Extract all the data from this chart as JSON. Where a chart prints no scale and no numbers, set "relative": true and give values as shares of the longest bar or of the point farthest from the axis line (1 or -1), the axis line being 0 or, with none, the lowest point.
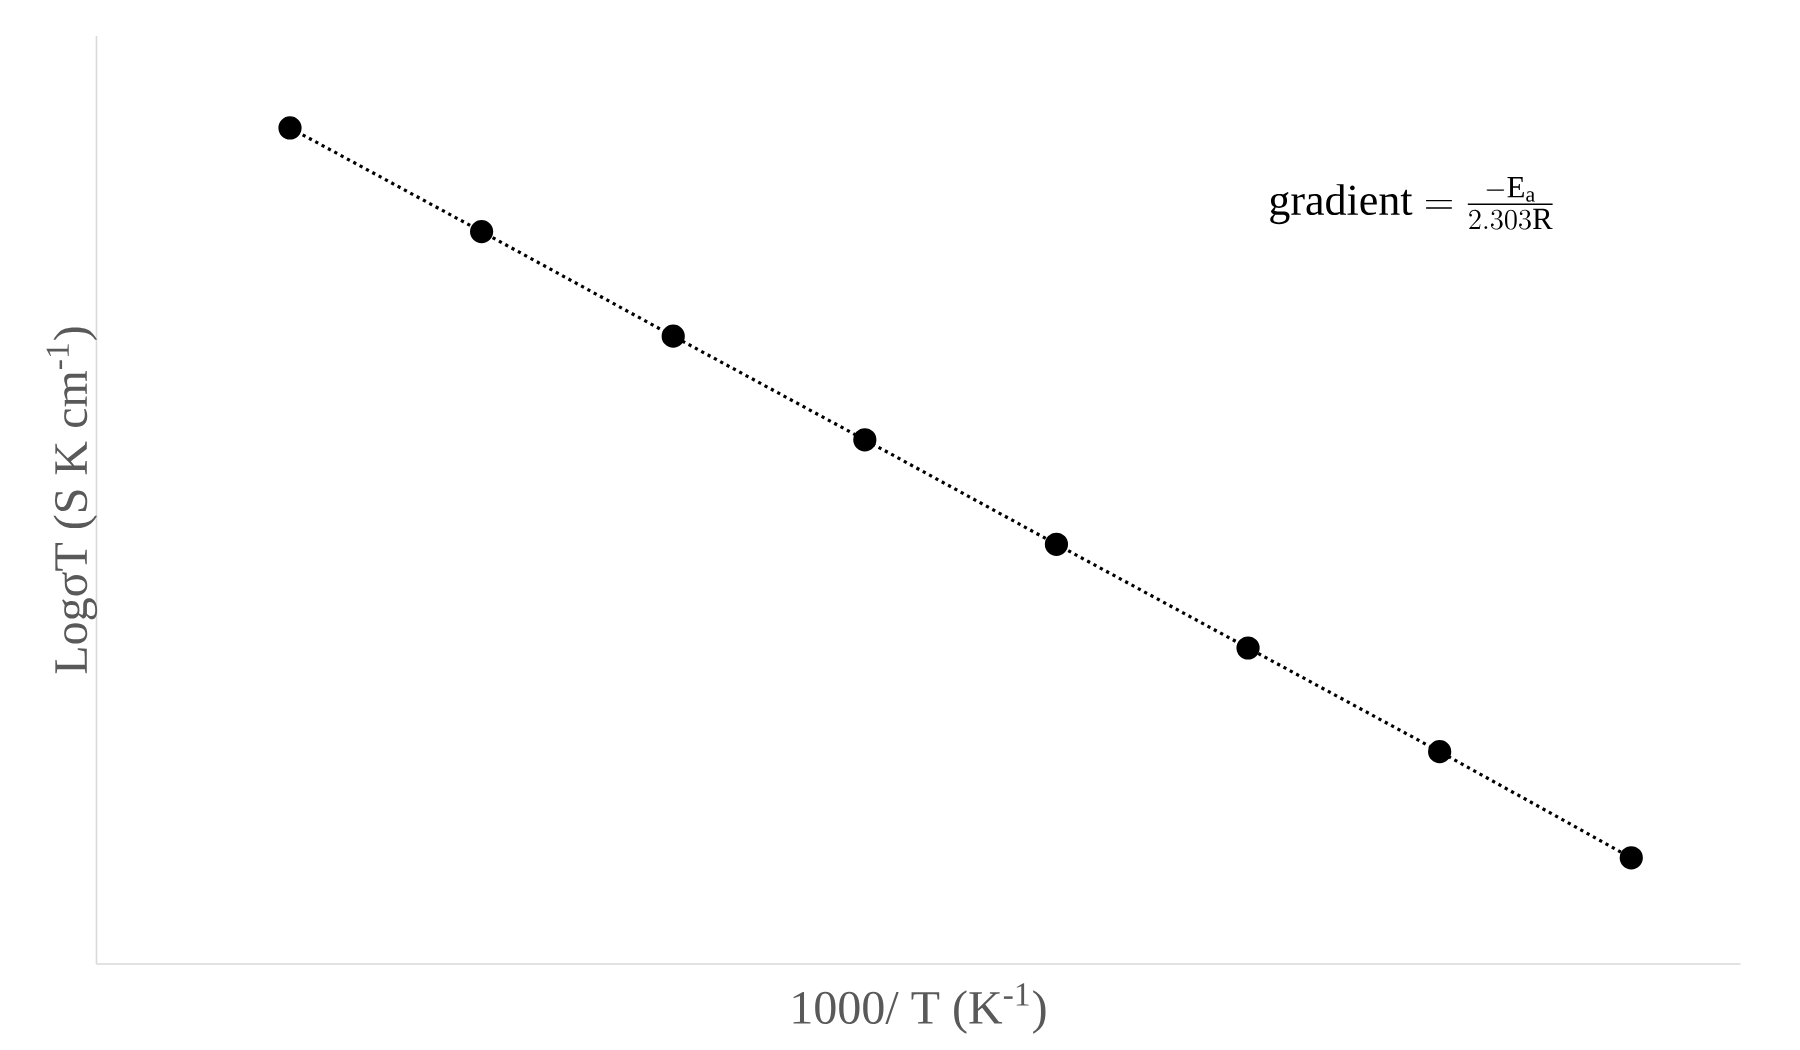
{
  "chart_data": {
    "type": "line",
    "relative": true,
    "xlabel": "1000/ T (K$^{-1}$)",
    "ylabel": "LogσT (S K cm$^{-1}$)",
    "categories": [
      null,
      null,
      null,
      null,
      null,
      null,
      null,
      null
    ],
    "values": [
      1,
      0.876,
      0.751,
      0.627,
      0.502,
      0.378,
      0.254,
      0.127
    ],
    "color": "#000000",
    "marker": "circle",
    "line_style": "dotted",
    "tick_labels": false,
    "annotations": [
      "\\mathrm{gradient} = \\frac{-\\mathrm{E_a}}{2.303\\mathrm{R}}"
    ]
  }
}
